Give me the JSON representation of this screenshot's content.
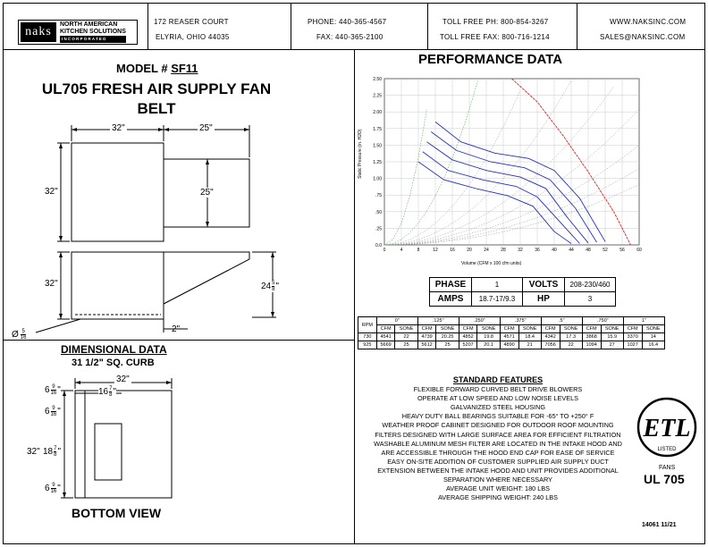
{
  "header": {
    "logo_mark": "naks",
    "logo_line1": "NORTH AMERICAN",
    "logo_line2": "KITCHEN SOLUTIONS",
    "logo_line3": "INCORPORATED",
    "address1": "172 REASER COURT",
    "address2": "ELYRIA, OHIO 44035",
    "phone": "PHONE: 440-365-4567",
    "fax": "FAX: 440-365-2100",
    "tollfree_ph": "TOLL FREE PH: 800-854-3267",
    "tollfree_fax": "TOLL FREE FAX: 800-716-1214",
    "web": "WWW.NAKSINC.COM",
    "email": "SALES@NAKSINC.COM"
  },
  "model": {
    "label": "MODEL #",
    "number": "SF11",
    "title1": "UL705 FRESH AIR SUPPLY FAN",
    "title2": "BELT"
  },
  "dims": {
    "top_w1": "32\"",
    "top_w2": "25\"",
    "top_h1": "32\"",
    "top_h2": "25\"",
    "side_h": "32\"",
    "side_total_whole": "24",
    "side_total_frac_num": "5",
    "side_total_frac_den": "8",
    "side_total_unit": "\"",
    "side_bottom": "2\"",
    "hole_prefix": "Ø",
    "hole_num": "5",
    "hole_den": "16",
    "dimensional_heading": "DIMENSIONAL DATA",
    "curb": "31 1/2\" SQ. CURB",
    "bottom_w": "32\"",
    "bottom_h": "32\"",
    "b_left_whole": "6",
    "b_left_num": "9",
    "b_left_den": "16",
    "b_open_w_whole": "16",
    "b_open_w_num": "7",
    "b_open_w_den": "8",
    "b_top_whole": "6",
    "b_top_num": "9",
    "b_top_den": "16",
    "b_open_h_whole": "18",
    "b_open_h_num": "7",
    "b_open_h_den": "8",
    "b_bot_whole": "6",
    "b_bot_num": "9",
    "b_bot_den": "16",
    "unit": "\"",
    "bottom_view": "BOTTOM VIEW"
  },
  "performance": {
    "title": "PERFORMANCE DATA",
    "y_ticks": [
      "2.50",
      "2.25",
      "2.00",
      "1.75",
      "1.50",
      "1.25",
      "1.00",
      ".75",
      ".50",
      ".25",
      "0.0"
    ],
    "x_ticks": [
      "0",
      "4",
      "8",
      "12",
      "16",
      "20",
      "24",
      "28",
      "32",
      "36",
      "40",
      "44",
      "48",
      "52",
      "56",
      "60"
    ],
    "ylabel": "Static Pressure (in. H2O)",
    "xlabel": "Volume (CFM x 100 cfm units)"
  },
  "chart_data": {
    "type": "line",
    "xlabel": "Volume (CFM x 100 cfm units)",
    "ylabel": "Static Pressure (in. H2O)",
    "xlim": [
      0,
      60
    ],
    "ylim": [
      0,
      2.5
    ],
    "series": [
      {
        "x": [
          12,
          18,
          26,
          34,
          40,
          46,
          52
        ],
        "y": [
          1.85,
          1.55,
          1.38,
          1.3,
          1.12,
          0.7,
          0.05
        ]
      },
      {
        "x": [
          11,
          17,
          25,
          33,
          39,
          45,
          50
        ],
        "y": [
          1.7,
          1.42,
          1.25,
          1.16,
          0.98,
          0.55,
          0.04
        ]
      },
      {
        "x": [
          10,
          16,
          24,
          32,
          38,
          43,
          48
        ],
        "y": [
          1.55,
          1.28,
          1.12,
          1.02,
          0.85,
          0.42,
          0.03
        ]
      },
      {
        "x": [
          9,
          15,
          23,
          31,
          36,
          42,
          46
        ],
        "y": [
          1.4,
          1.12,
          0.98,
          0.88,
          0.72,
          0.3,
          0.02
        ]
      },
      {
        "x": [
          8,
          14,
          22,
          29,
          35,
          40,
          44
        ],
        "y": [
          1.25,
          0.98,
          0.84,
          0.74,
          0.58,
          0.2,
          0.02
        ]
      },
      {
        "x": [
          30,
          36,
          42,
          48,
          54,
          58
        ],
        "y": [
          2.5,
          2.15,
          1.65,
          1.1,
          0.5,
          0.0
        ]
      }
    ]
  },
  "specs": {
    "phase_label": "PHASE",
    "phase": "1",
    "volts_label": "VOLTS",
    "volts": "208-230/460",
    "amps_label": "AMPS",
    "amps": "18.7-17/9.3",
    "hp_label": "HP",
    "hp": "3"
  },
  "rpm_table": {
    "rpm_label": "RPM",
    "groups": [
      "0\"",
      ".125\"",
      ".250\"",
      ".375\"",
      ".5\"",
      ".750\"",
      "1\""
    ],
    "cfm": "CFM",
    "sone": "SONE",
    "rows": [
      [
        "730",
        "4541",
        "22",
        "4739",
        "20.25",
        "4852",
        "19.8",
        "4571",
        "18.4",
        "4342",
        "17.3",
        "3868",
        "15.9",
        "3370",
        "14"
      ],
      [
        "925",
        "5669",
        "25",
        "5612",
        "25",
        "5207",
        "20.1",
        "4890",
        "21",
        "7056",
        "22",
        "1094",
        "27",
        "1027",
        "16.4"
      ]
    ]
  },
  "features": {
    "heading": "STANDARD FEATURES",
    "lines": [
      "FLEXIBLE FORWARD CURVED BELT DRIVE BLOWERS",
      "OPERATE AT LOW SPEED AND LOW NOISE LEVELS",
      "GALVANIZED STEEL HOUSING",
      "HEAVY DUTY BALL BEARINGS SUITABLE FOR -65° TO +250° F",
      "WEATHER PROOF CABINET DESIGNED FOR OUTDOOR ROOF MOUNTING",
      "FILTERS DESIGNED WITH LARGE SURFACE AREA FOR EFFICIENT FILTRATION",
      "WASHABLE ALUMINUM MESH FILTER ARE LOCATED IN THE INTAKE HOOD AND",
      "ARE ACCESSIBLE THROUGH THE HOOD END CAP FOR EASE OF SERVICE",
      "EASY ON-SITE ADDITION OF CUSTOMER SUPPLIED AIR SUPPLY DUCT",
      "EXTENSION BETWEEN THE INTAKE HOOD AND UNIT PROVIDES ADDITIONAL",
      "SEPARATION WHERE NECESSARY",
      "AVERAGE UNIT WEIGHT: 180 LBS",
      "AVERAGE SHIPPING WEIGHT: 240 LBS"
    ]
  },
  "cert": {
    "etl": "ETL",
    "listed": "LISTED",
    "fans": "FANS",
    "ul": "UL 705",
    "doc_code": "14061 11/21"
  }
}
